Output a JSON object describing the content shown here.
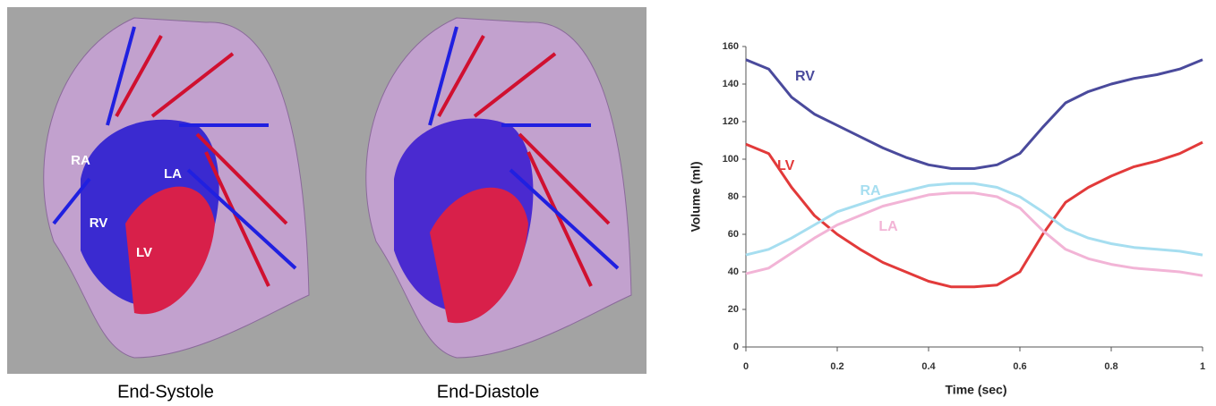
{
  "images": [
    {
      "caption": "End-Systole",
      "labels": [
        "RA",
        "LA",
        "RV",
        "LV"
      ]
    },
    {
      "caption": "End-Diastole"
    }
  ],
  "chart_data": {
    "type": "line",
    "x_label": "Time (sec)",
    "y_label": "Volume (ml)",
    "x": [
      0,
      0.05,
      0.1,
      0.15,
      0.2,
      0.25,
      0.3,
      0.35,
      0.4,
      0.45,
      0.5,
      0.55,
      0.6,
      0.65,
      0.7,
      0.75,
      0.8,
      0.85,
      0.9,
      0.95,
      1
    ],
    "series": [
      {
        "name": "RV",
        "color": "#4a4a9c",
        "values": [
          153,
          148,
          133,
          124,
          118,
          112,
          106,
          101,
          97,
          95,
          95,
          97,
          103,
          117,
          130,
          136,
          140,
          143,
          145,
          148,
          153
        ]
      },
      {
        "name": "LV",
        "color": "#e23a3a",
        "values": [
          108,
          103,
          85,
          70,
          60,
          52,
          45,
          40,
          35,
          32,
          32,
          33,
          40,
          60,
          77,
          85,
          91,
          96,
          99,
          103,
          109
        ]
      },
      {
        "name": "RA",
        "color": "#a6def0",
        "values": [
          49,
          52,
          58,
          65,
          72,
          76,
          80,
          83,
          86,
          87,
          87,
          85,
          80,
          72,
          63,
          58,
          55,
          53,
          52,
          51,
          49
        ]
      },
      {
        "name": "LA",
        "color": "#f2b4d6",
        "values": [
          39,
          42,
          50,
          58,
          65,
          70,
          75,
          78,
          81,
          82,
          82,
          80,
          74,
          62,
          52,
          47,
          44,
          42,
          41,
          40,
          38
        ]
      }
    ],
    "xlim": [
      0,
      1
    ],
    "xticks": [
      0,
      0.2,
      0.4,
      0.6,
      0.8,
      1
    ],
    "ylim": [
      0,
      160
    ],
    "yticks": [
      0,
      20,
      40,
      60,
      80,
      100,
      120,
      140,
      160
    ]
  }
}
